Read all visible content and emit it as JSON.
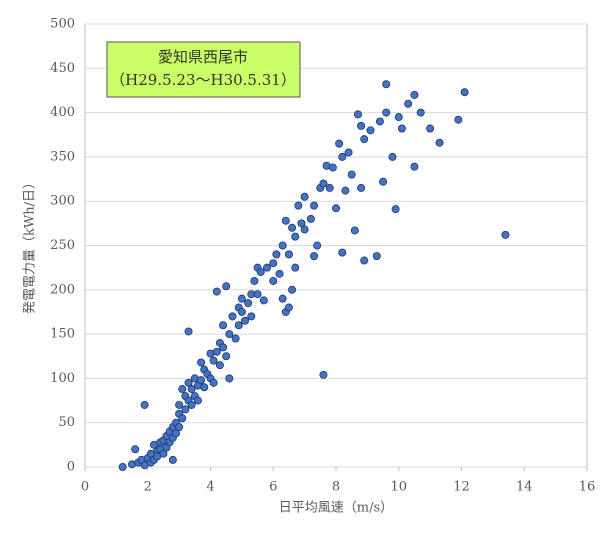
{
  "chart_data": {
    "type": "scatter",
    "annotation": [
      "愛知県西尾市",
      "（H29.5.23～H30.5.31）"
    ],
    "x_label": "日平均風速（m/s）",
    "y_label": "発電電力量（kWh/日）",
    "xlim": [
      0,
      16
    ],
    "ylim": [
      0,
      500
    ],
    "xticks": [
      0,
      2,
      4,
      6,
      8,
      10,
      12,
      14,
      16
    ],
    "yticks": [
      0,
      50,
      100,
      150,
      200,
      250,
      300,
      350,
      400,
      450,
      500
    ],
    "grid": true,
    "color": "#4472c4",
    "x": [
      1.2,
      1.5,
      1.6,
      1.7,
      1.8,
      1.9,
      1.9,
      2.0,
      2.1,
      2.1,
      2.2,
      2.2,
      2.3,
      2.3,
      2.4,
      2.4,
      2.5,
      2.5,
      2.6,
      2.6,
      2.7,
      2.7,
      2.8,
      2.8,
      2.8,
      2.9,
      2.9,
      3.0,
      3.0,
      3.0,
      3.1,
      3.1,
      3.2,
      3.2,
      3.3,
      3.3,
      3.3,
      3.4,
      3.4,
      3.5,
      3.5,
      3.6,
      3.6,
      3.7,
      3.7,
      3.8,
      3.8,
      3.9,
      4.0,
      4.0,
      4.1,
      4.1,
      4.2,
      4.2,
      4.3,
      4.3,
      4.4,
      4.4,
      4.5,
      4.5,
      4.6,
      4.6,
      4.7,
      4.8,
      4.9,
      4.9,
      5.0,
      5.0,
      5.1,
      5.2,
      5.3,
      5.3,
      5.4,
      5.5,
      5.5,
      5.6,
      5.7,
      5.8,
      6.0,
      6.0,
      6.1,
      6.2,
      6.3,
      6.3,
      6.4,
      6.4,
      6.5,
      6.5,
      6.6,
      6.6,
      6.7,
      6.7,
      6.8,
      6.9,
      7.0,
      7.0,
      7.2,
      7.3,
      7.4,
      7.5,
      7.6,
      7.6,
      7.7,
      7.8,
      7.9,
      8.0,
      8.1,
      8.2,
      8.3,
      8.4,
      8.5,
      8.6,
      8.7,
      8.8,
      8.9,
      8.9,
      9.1,
      9.3,
      9.4,
      9.6,
      9.6,
      9.8,
      9.9,
      10.0,
      10.1,
      10.3,
      10.5,
      10.5,
      10.7,
      11.0,
      11.3,
      11.9,
      12.1,
      13.4,
      8.2,
      7.3,
      9.5,
      8.8
    ],
    "values": [
      0,
      3,
      20,
      5,
      8,
      70,
      2,
      10,
      5,
      15,
      8,
      25,
      18,
      12,
      28,
      20,
      30,
      15,
      35,
      22,
      40,
      28,
      45,
      8,
      33,
      50,
      38,
      60,
      45,
      70,
      55,
      88,
      65,
      80,
      153,
      75,
      95,
      70,
      88,
      100,
      80,
      92,
      75,
      118,
      98,
      110,
      90,
      105,
      128,
      100,
      120,
      95,
      198,
      130,
      115,
      140,
      135,
      160,
      204,
      125,
      150,
      100,
      170,
      145,
      180,
      160,
      190,
      175,
      165,
      185,
      195,
      170,
      210,
      225,
      195,
      220,
      188,
      225,
      230,
      210,
      240,
      218,
      250,
      190,
      278,
      175,
      240,
      180,
      270,
      200,
      260,
      225,
      295,
      275,
      305,
      268,
      280,
      295,
      250,
      315,
      104,
      320,
      340,
      315,
      338,
      292,
      365,
      350,
      312,
      355,
      330,
      267,
      398,
      385,
      233,
      370,
      380,
      238,
      390,
      432,
      400,
      350,
      291,
      395,
      382,
      410,
      420,
      339,
      400,
      382,
      366,
      392,
      423,
      262,
      242,
      238,
      322,
      315
    ]
  }
}
